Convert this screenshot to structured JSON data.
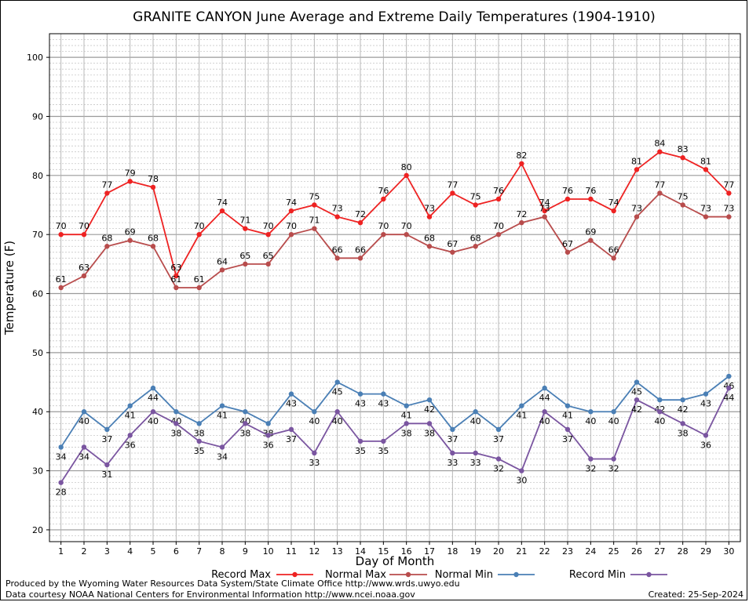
{
  "chart_data": {
    "type": "line",
    "title": "GRANITE CANYON June Average and Extreme Daily Temperatures (1904-1910)",
    "xlabel": "Day of Month",
    "ylabel": "Temperature (F)",
    "x": [
      1,
      2,
      3,
      4,
      5,
      6,
      7,
      8,
      9,
      10,
      11,
      12,
      13,
      14,
      15,
      16,
      17,
      18,
      19,
      20,
      21,
      22,
      23,
      24,
      25,
      26,
      27,
      28,
      29,
      30
    ],
    "ylim": [
      18,
      104
    ],
    "yticks": [
      20,
      30,
      40,
      50,
      60,
      70,
      80,
      90,
      100
    ],
    "grid": true,
    "legend_position": "bottom",
    "series": [
      {
        "name": "Record Max",
        "color": "#ee2222",
        "label_pos": "above",
        "values": [
          70,
          70,
          77,
          79,
          78,
          63,
          70,
          74,
          71,
          70,
          74,
          75,
          73,
          72,
          76,
          80,
          73,
          77,
          75,
          76,
          82,
          74,
          76,
          76,
          74,
          81,
          84,
          83,
          81,
          77
        ]
      },
      {
        "name": "Normal Max",
        "color": "#b84c4c",
        "label_pos": "above",
        "values": [
          61,
          63,
          68,
          69,
          68,
          61,
          61,
          64,
          65,
          65,
          70,
          71,
          66,
          66,
          70,
          70,
          68,
          67,
          68,
          70,
          72,
          73,
          67,
          69,
          66,
          73,
          77,
          75,
          73,
          73
        ]
      },
      {
        "name": "Normal Min",
        "color": "#4a7fb5",
        "label_pos": "below",
        "values": [
          34,
          40,
          37,
          41,
          44,
          40,
          38,
          41,
          40,
          38,
          43,
          40,
          45,
          43,
          43,
          41,
          42,
          37,
          40,
          37,
          41,
          44,
          41,
          40,
          40,
          45,
          42,
          42,
          43,
          46
        ]
      },
      {
        "name": "Record Min",
        "color": "#7a55a0",
        "label_pos": "below",
        "values": [
          28,
          34,
          31,
          36,
          40,
          38,
          35,
          34,
          38,
          36,
          37,
          33,
          40,
          35,
          35,
          38,
          38,
          33,
          33,
          32,
          30,
          40,
          37,
          32,
          32,
          42,
          40,
          38,
          36,
          44
        ]
      }
    ]
  },
  "footer": {
    "credit_line1": "Produced by the Wyoming Water Resources Data System/State Climate Office http://www.wrds.uwyo.edu",
    "credit_line2": "Data courtesy NOAA National Centers for Environmental Information http://www.ncei.noaa.gov",
    "created": "Created:  25-Sep-2024"
  }
}
